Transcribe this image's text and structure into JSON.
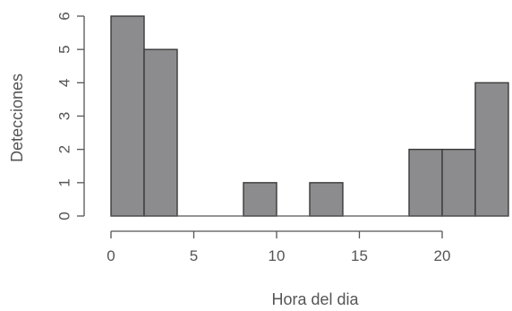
{
  "chart_data": {
    "type": "bar",
    "subtype": "histogram",
    "xlabel": "Hora del dia",
    "ylabel": "Detecciones",
    "bins": [
      {
        "x0": 0,
        "x1": 2,
        "value": 6
      },
      {
        "x0": 2,
        "x1": 4,
        "value": 5
      },
      {
        "x0": 4,
        "x1": 6,
        "value": 0
      },
      {
        "x0": 6,
        "x1": 8,
        "value": 0
      },
      {
        "x0": 8,
        "x1": 10,
        "value": 1
      },
      {
        "x0": 10,
        "x1": 12,
        "value": 0
      },
      {
        "x0": 12,
        "x1": 14,
        "value": 1
      },
      {
        "x0": 14,
        "x1": 16,
        "value": 0
      },
      {
        "x0": 16,
        "x1": 18,
        "value": 0
      },
      {
        "x0": 18,
        "x1": 20,
        "value": 2
      },
      {
        "x0": 20,
        "x1": 22,
        "value": 2
      },
      {
        "x0": 22,
        "x1": 24,
        "value": 4
      }
    ],
    "xticks": [
      "0",
      "5",
      "10",
      "15",
      "20"
    ],
    "yticks": [
      "0",
      "1",
      "2",
      "3",
      "4",
      "5",
      "6"
    ],
    "xlim": [
      0,
      24
    ],
    "ylim": [
      0,
      6
    ],
    "grid": false,
    "colors": {
      "bar_fill": "#8c8c8e",
      "bar_stroke": "#3a3a3a",
      "axis": "#555555"
    }
  }
}
